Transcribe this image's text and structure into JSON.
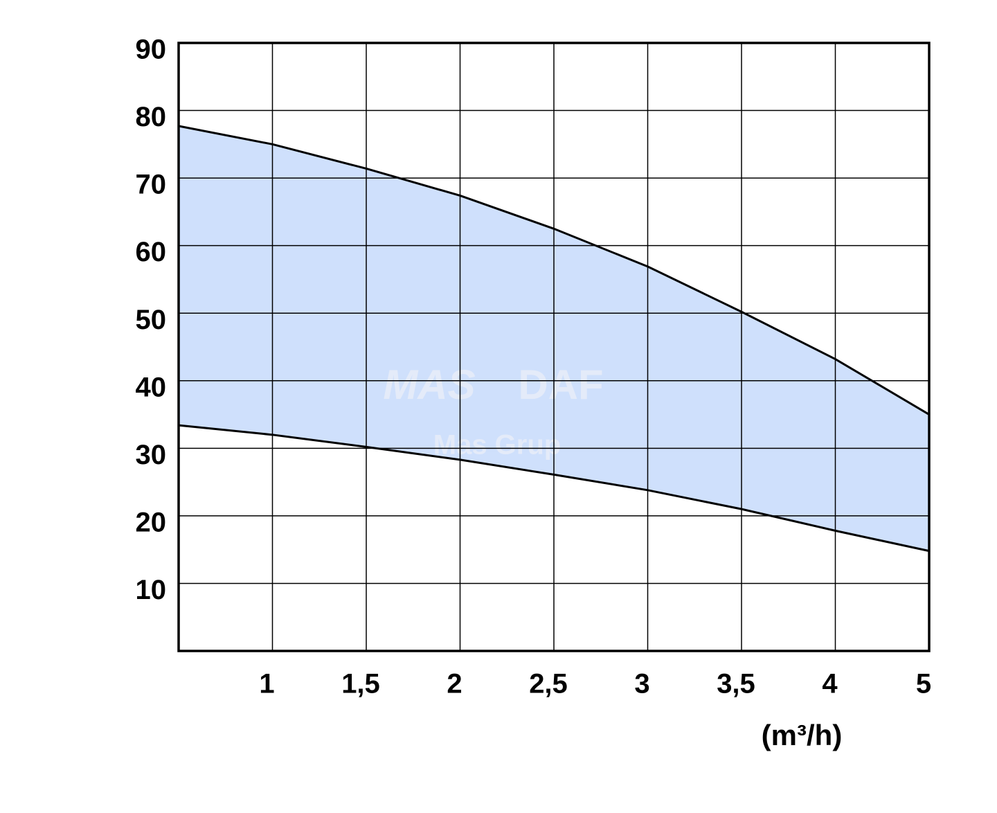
{
  "chart_data": {
    "type": "band",
    "x_label": "(m³/h)",
    "categories": [
      null,
      "1",
      "1,5",
      "2",
      "2,5",
      "3",
      "3,5",
      "4",
      "5"
    ],
    "series": [
      {
        "color": "#000000",
        "values": [
          77.7,
          75,
          71.4,
          67.4,
          62.5,
          56.9,
          50.2,
          43.2,
          35.0
        ]
      },
      {
        "color": "#000000",
        "values": [
          33.4,
          32,
          30.2,
          28.3,
          26.1,
          23.8,
          21,
          17.8,
          14.8
        ]
      }
    ],
    "fill_color": "#cfe0fc",
    "ylim": [
      0,
      90
    ],
    "yticks": [
      10,
      20,
      30,
      40,
      50,
      60,
      70,
      80,
      90
    ],
    "grid": true,
    "watermark": [
      "MAS",
      "DAF",
      "Mas Grup"
    ]
  }
}
